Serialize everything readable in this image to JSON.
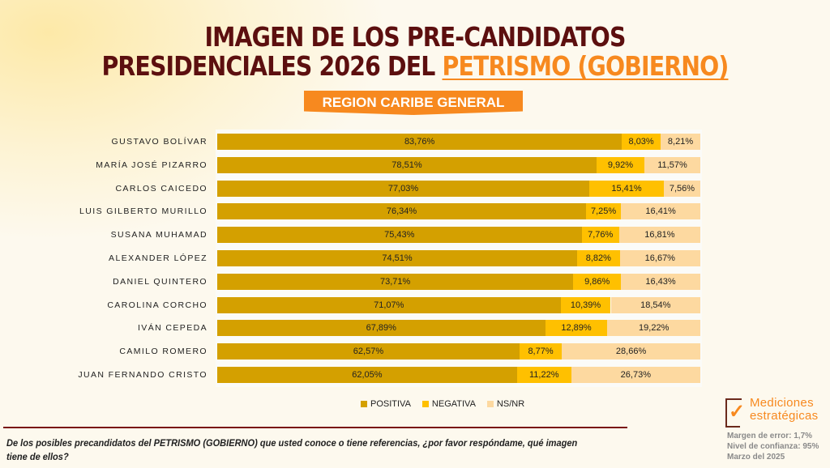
{
  "title": {
    "line1": "IMAGEN DE LOS PRE-CANDIDATOS",
    "line2_prefix": "PRESIDENCIALES 2026 DEL ",
    "line2_accent": "PETRISMO (GOBIERNO)"
  },
  "region_badge": "REGION CARIBE GENERAL",
  "colors": {
    "positiva": "#d4a000",
    "negativa": "#ffc000",
    "nsnr": "#fdd9a0",
    "title": "#5c0f0f",
    "accent": "#f7891f"
  },
  "chart_data": {
    "type": "bar",
    "orientation": "horizontal",
    "stacked": true,
    "title": "IMAGEN DE LOS PRE-CANDIDATOS PRESIDENCIALES 2026 DEL PETRISMO (GOBIERNO)",
    "subtitle": "REGION CARIBE GENERAL",
    "xlim": [
      0,
      100
    ],
    "grid": false,
    "legend_position": "bottom",
    "categories": [
      "GUSTAVO BOLÍVAR",
      "MARÍA JOSÉ PIZARRO",
      "CARLOS CAICEDO",
      "LUIS GILBERTO MURILLO",
      "SUSANA MUHAMAD",
      "ALEXANDER LÓPEZ",
      "DANIEL QUINTERO",
      "CAROLINA CORCHO",
      "IVÁN CEPEDA",
      "CAMILO ROMERO",
      "JUAN FERNANDO CRISTO"
    ],
    "series": [
      {
        "name": "POSITIVA",
        "values": [
          83.76,
          78.51,
          77.03,
          76.34,
          75.43,
          74.51,
          73.71,
          71.07,
          67.89,
          62.57,
          62.05
        ]
      },
      {
        "name": "NEGATIVA",
        "values": [
          8.03,
          9.92,
          15.41,
          7.25,
          7.76,
          8.82,
          9.86,
          10.39,
          12.89,
          8.77,
          11.22
        ]
      },
      {
        "name": "NS/NR",
        "values": [
          8.21,
          11.57,
          7.56,
          16.41,
          16.81,
          16.67,
          16.43,
          18.54,
          19.22,
          28.66,
          26.73
        ]
      }
    ],
    "labels": [
      [
        "83,76%",
        "8,03%",
        "8,21%"
      ],
      [
        "78,51%",
        "9,92%",
        "11,57%"
      ],
      [
        "77,03%",
        "15,41%",
        "7,56%"
      ],
      [
        "76,34%",
        "7,25%",
        "16,41%"
      ],
      [
        "75,43%",
        "7,76%",
        "16,81%"
      ],
      [
        "74,51%",
        "8,82%",
        "16,67%"
      ],
      [
        "73,71%",
        "9,86%",
        "16,43%"
      ],
      [
        "71,07%",
        "10,39%",
        "18,54%"
      ],
      [
        "67,89%",
        "12,89%",
        "19,22%"
      ],
      [
        "62,57%",
        "8,77%",
        "28,66%"
      ],
      [
        "62,05%",
        "11,22%",
        "26,73%"
      ]
    ]
  },
  "legend": [
    {
      "label": "POSITIVA"
    },
    {
      "label": "NEGATIVA"
    },
    {
      "label": "NS/NR"
    }
  ],
  "question": "De los posibles precandidatos del PETRISMO (GOBIERNO) que usted conoce o tiene referencias, ¿por favor respóndame, qué imagen tiene de ellos?",
  "logo": {
    "line1": "Mediciones",
    "line2": "estratégicas"
  },
  "meta": {
    "margin": "Margen de error: 1,7%",
    "confidence": "Nivel de confianza: 95%",
    "date": "Marzo del 2025"
  }
}
